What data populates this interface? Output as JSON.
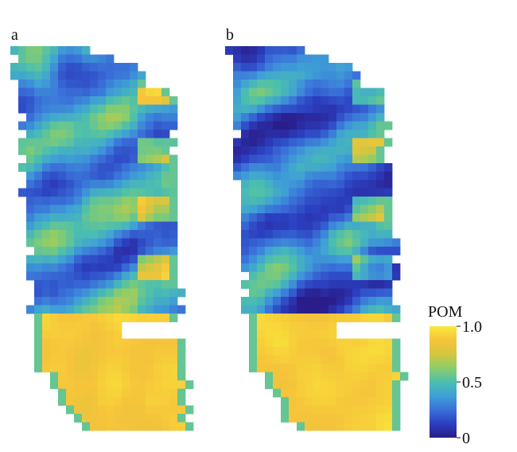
{
  "chart_data": [
    {
      "type": "heatmap",
      "panel_label": "a",
      "cell_rows": 46,
      "cell_cols": 25,
      "value_range": [
        0,
        1
      ]
    },
    {
      "type": "heatmap",
      "panel_label": "b",
      "cell_rows": 46,
      "cell_cols": 25,
      "value_range": [
        0,
        1
      ]
    }
  ],
  "colorbar": {
    "title": "POM",
    "ticks": [
      {
        "label": "1.0",
        "value": 1.0
      },
      {
        "label": "0.5",
        "value": 0.5
      },
      {
        "label": "0",
        "value": 0.0
      }
    ],
    "colormap": [
      "#2a1d8a",
      "#2b3fbf",
      "#3a70d9",
      "#3fa0d6",
      "#4bbfae",
      "#8ccd6a",
      "#d4c640",
      "#f6c43a",
      "#f9e93a"
    ]
  }
}
